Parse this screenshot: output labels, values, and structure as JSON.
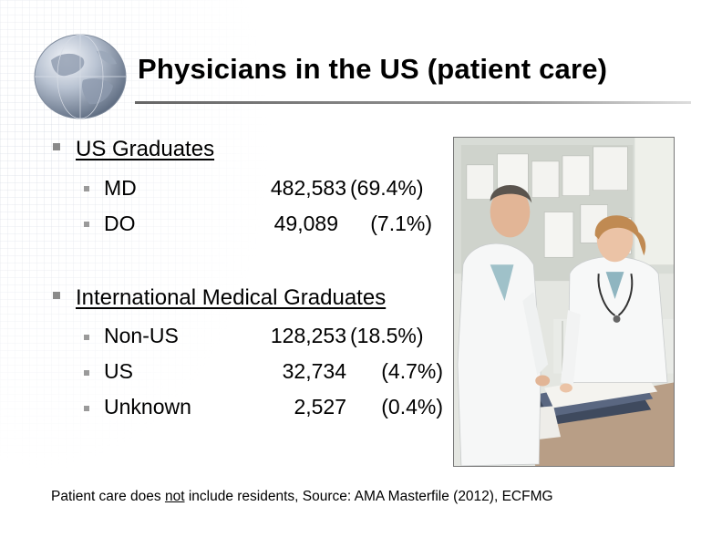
{
  "slide": {
    "title": "Physicians in the US (patient care)"
  },
  "sections": [
    {
      "heading": "US Graduates",
      "rows": [
        {
          "label": "MD",
          "count": "482,583",
          "percent": "(69.4%)"
        },
        {
          "label": "DO",
          "count": "49,089",
          "percent": "(7.1%)"
        }
      ]
    },
    {
      "heading": "International Medical Graduates",
      "rows": [
        {
          "label": "Non-US",
          "count": "128,253",
          "percent": "(18.5%)"
        },
        {
          "label": "US",
          "count": "32,734",
          "percent": "(4.7%)"
        },
        {
          "label": "Unknown",
          "count": "2,527",
          "percent": "(0.4%)"
        }
      ]
    }
  ],
  "footnote": {
    "part1": "Patient care does ",
    "emphasis": "not",
    "part2": " include residents, Source: AMA Masterfile (2012), ECFMG"
  },
  "icons": {
    "logo": "globe-icon",
    "bullet": "square-bullet-icon"
  },
  "colors": {
    "text": "#000000",
    "bullet": "#8a8a8a",
    "rule": "#666666"
  }
}
